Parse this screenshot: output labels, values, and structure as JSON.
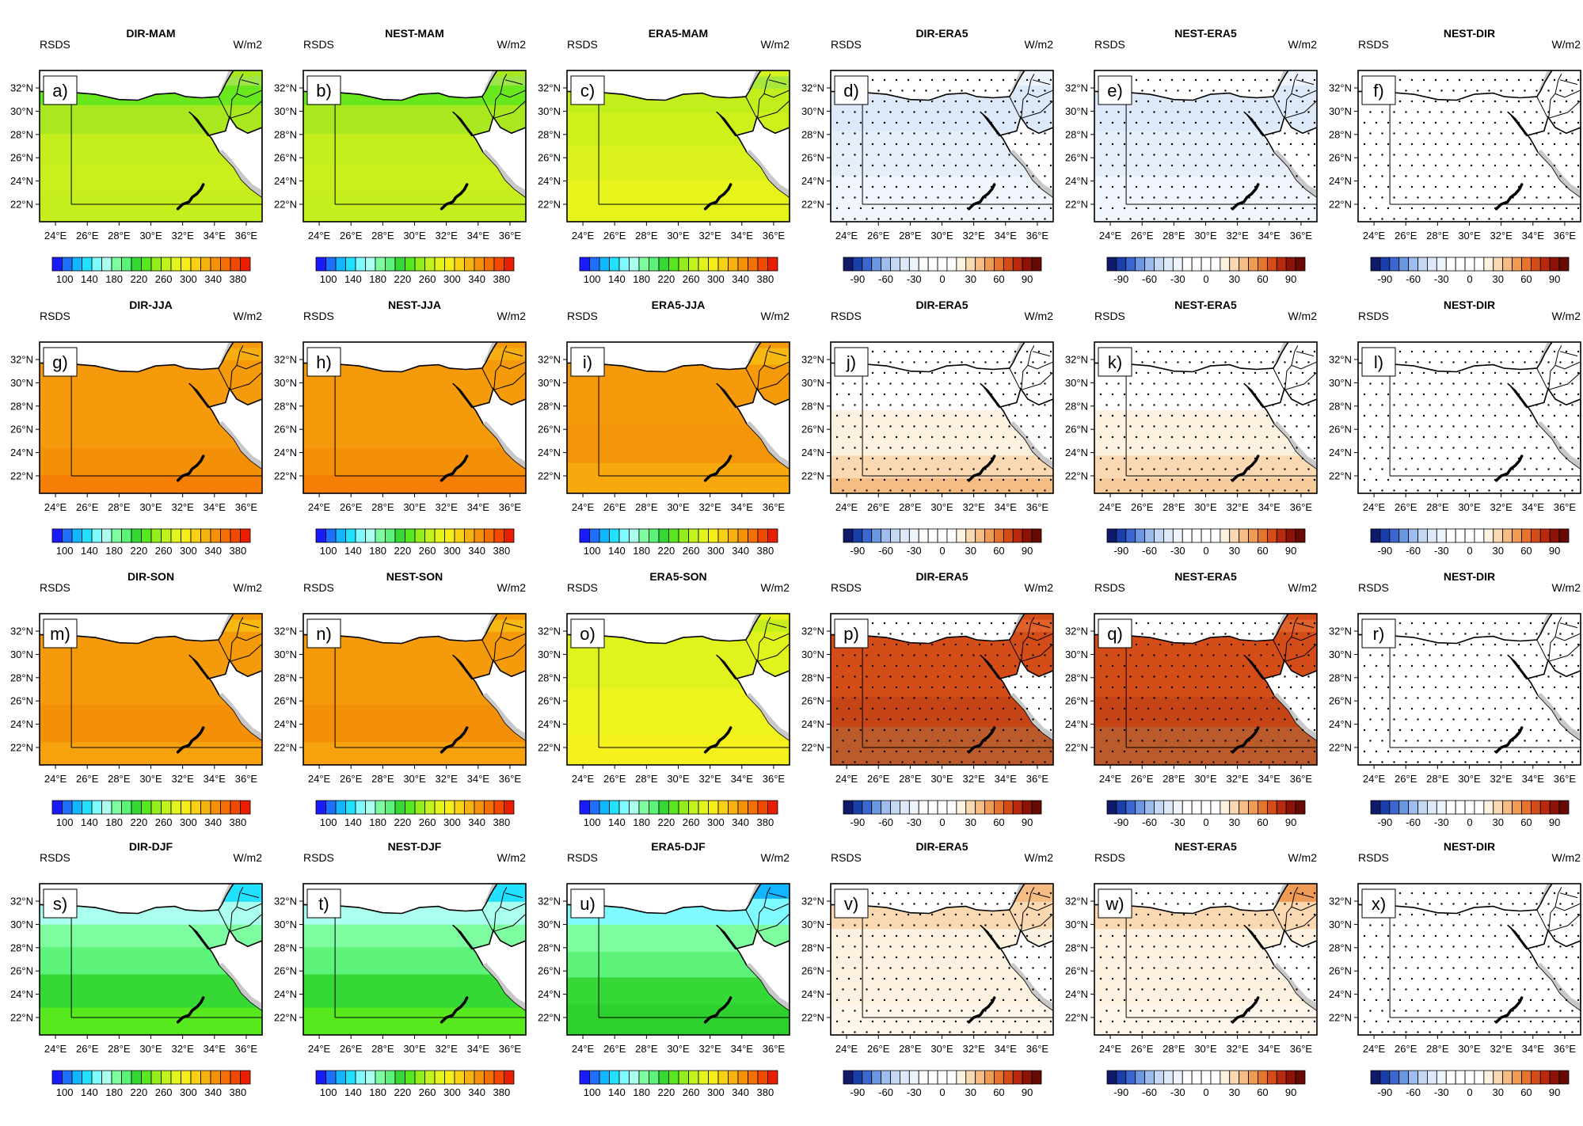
{
  "figure": {
    "variable_label": "RSDS",
    "unit_label": "W/m2",
    "lon_ticks": [
      "24°E",
      "26°E",
      "28°E",
      "30°E",
      "32°E",
      "34°E",
      "36°E"
    ],
    "lat_ticks": [
      "32°N",
      "30°N",
      "28°N",
      "26°N",
      "24°N",
      "22°N"
    ],
    "colors": {
      "abs_scale": [
        "#1a1aff",
        "#1f6fff",
        "#12b5ff",
        "#22e0ff",
        "#7ffbff",
        "#aaffee",
        "#7dfca0",
        "#5df27a",
        "#35d835",
        "#58e81e",
        "#93ee1c",
        "#c2f31c",
        "#e2f41c",
        "#f6ec1a",
        "#f8d014",
        "#f7b20e",
        "#f59108",
        "#f47004",
        "#f14902",
        "#e81e02"
      ],
      "diff_scale": [
        "#11196b",
        "#1b3fa8",
        "#3a68d0",
        "#6c97e3",
        "#9dbcef",
        "#c4d8f4",
        "#dde9f8",
        "#eef4fb",
        "#ffffff",
        "#ffffff",
        "#ffffff",
        "#ffffff",
        "#fdf1e0",
        "#fad9b2",
        "#f5bd84",
        "#ef9a55",
        "#e4742e",
        "#d44c18",
        "#b8290e",
        "#8d1208",
        "#680a04"
      ]
    },
    "panels": [
      {
        "title": "DIR-MAM",
        "letter": "a)",
        "scale": "abs",
        "base": "#a9e81e",
        "bands": [
          {
            "y": 0.04,
            "c": "#9de54a"
          },
          {
            "y": 0.1,
            "c": "#6ae81e"
          },
          {
            "y": 0.23,
            "c": "#a9e81e"
          },
          {
            "y": 0.42,
            "c": "#c4ee1c"
          },
          {
            "y": 0.62,
            "c": "#c9ef1c"
          },
          {
            "y": 0.8,
            "c": "#c4ee1c"
          }
        ],
        "stipple": false
      },
      {
        "title": "NEST-MAM",
        "letter": "b)",
        "scale": "abs",
        "base": "#a9e81e",
        "bands": [
          {
            "y": 0.04,
            "c": "#9de54a"
          },
          {
            "y": 0.1,
            "c": "#6ae81e"
          },
          {
            "y": 0.23,
            "c": "#a9e81e"
          },
          {
            "y": 0.42,
            "c": "#c4ee1c"
          },
          {
            "y": 0.62,
            "c": "#c9ef1c"
          },
          {
            "y": 0.8,
            "c": "#c4ee1c"
          }
        ],
        "stipple": false
      },
      {
        "title": "ERA5-MAM",
        "letter": "c)",
        "scale": "abs",
        "base": "#d7f21c",
        "bands": [
          {
            "y": 0.04,
            "c": "#a8e83a"
          },
          {
            "y": 0.12,
            "c": "#c2ee1c"
          },
          {
            "y": 0.28,
            "c": "#d0f01c"
          },
          {
            "y": 0.5,
            "c": "#dcf21c"
          },
          {
            "y": 0.72,
            "c": "#e6f41c"
          }
        ],
        "stipple": false
      },
      {
        "title": "DIR-ERA5",
        "letter": "d)",
        "scale": "diff",
        "base": "#eef4fb",
        "bands": [
          {
            "y": 0.1,
            "c": "#dde9f8"
          },
          {
            "y": 0.4,
            "c": "#e6eff9"
          },
          {
            "y": 0.7,
            "c": "#f1f6fc"
          }
        ],
        "stipple": true
      },
      {
        "title": "NEST-ERA5",
        "letter": "e)",
        "scale": "diff",
        "base": "#eef4fb",
        "bands": [
          {
            "y": 0.1,
            "c": "#dde9f8"
          },
          {
            "y": 0.4,
            "c": "#e6eff9"
          },
          {
            "y": 0.7,
            "c": "#f1f6fc"
          }
        ],
        "stipple": true
      },
      {
        "title": "NEST-DIR",
        "letter": "f)",
        "scale": "diff",
        "base": "#ffffff",
        "bands": [],
        "stipple": true
      },
      {
        "title": "DIR-JJA",
        "letter": "g)",
        "scale": "abs",
        "base": "#f59a0a",
        "bands": [
          {
            "y": 0.04,
            "c": "#f7ae10"
          },
          {
            "y": 0.12,
            "c": "#f59a0a"
          },
          {
            "y": 0.7,
            "c": "#f48f08"
          },
          {
            "y": 0.88,
            "c": "#f47e06"
          }
        ],
        "stipple": false
      },
      {
        "title": "NEST-JJA",
        "letter": "h)",
        "scale": "abs",
        "base": "#f59a0a",
        "bands": [
          {
            "y": 0.04,
            "c": "#f7ae10"
          },
          {
            "y": 0.12,
            "c": "#f59a0a"
          },
          {
            "y": 0.7,
            "c": "#f48f08"
          },
          {
            "y": 0.88,
            "c": "#f47e06"
          }
        ],
        "stipple": false
      },
      {
        "title": "ERA5-JJA",
        "letter": "i)",
        "scale": "abs",
        "base": "#f59a0a",
        "bands": [
          {
            "y": 0.04,
            "c": "#f7b812"
          },
          {
            "y": 0.15,
            "c": "#f59a0a"
          },
          {
            "y": 0.55,
            "c": "#f49408"
          },
          {
            "y": 0.8,
            "c": "#f6a80c"
          }
        ],
        "stipple": false
      },
      {
        "title": "DIR-ERA5",
        "letter": "j)",
        "scale": "diff",
        "base": "#ffffff",
        "bands": [
          {
            "y": 0.45,
            "c": "#fdf1e0"
          },
          {
            "y": 0.75,
            "c": "#fad9b2"
          },
          {
            "y": 0.9,
            "c": "#f5bd84"
          }
        ],
        "stipple": true
      },
      {
        "title": "NEST-ERA5",
        "letter": "k)",
        "scale": "diff",
        "base": "#ffffff",
        "bands": [
          {
            "y": 0.45,
            "c": "#fdf1e0"
          },
          {
            "y": 0.75,
            "c": "#fad9b2"
          },
          {
            "y": 0.9,
            "c": "#f7cc9c"
          }
        ],
        "stipple": true
      },
      {
        "title": "NEST-DIR",
        "letter": "l)",
        "scale": "diff",
        "base": "#ffffff",
        "bands": [],
        "stipple": true
      },
      {
        "title": "DIR-SON",
        "letter": "m)",
        "scale": "abs",
        "base": "#f59a0a",
        "bands": [
          {
            "y": 0.04,
            "c": "#f7b812"
          },
          {
            "y": 0.12,
            "c": "#f59a0a"
          },
          {
            "y": 0.6,
            "c": "#f48f08"
          },
          {
            "y": 0.85,
            "c": "#f6a20c"
          }
        ],
        "stipple": false
      },
      {
        "title": "NEST-SON",
        "letter": "n)",
        "scale": "abs",
        "base": "#f59a0a",
        "bands": [
          {
            "y": 0.04,
            "c": "#f7b812"
          },
          {
            "y": 0.12,
            "c": "#f59a0a"
          },
          {
            "y": 0.6,
            "c": "#f48f08"
          },
          {
            "y": 0.85,
            "c": "#f6a20c"
          }
        ],
        "stipple": false
      },
      {
        "title": "ERA5-SON",
        "letter": "o)",
        "scale": "abs",
        "base": "#e6f41c",
        "bands": [
          {
            "y": 0.04,
            "c": "#c8ef1c"
          },
          {
            "y": 0.12,
            "c": "#e0f31c"
          },
          {
            "y": 0.5,
            "c": "#eef41c"
          },
          {
            "y": 0.8,
            "c": "#f3f01c"
          }
        ],
        "stipple": false
      },
      {
        "title": "DIR-ERA5",
        "letter": "p)",
        "scale": "diff",
        "base": "#d44c18",
        "bands": [
          {
            "y": 0.04,
            "c": "#e0622a"
          },
          {
            "y": 0.12,
            "c": "#d44c18"
          },
          {
            "y": 0.55,
            "c": "#c64516"
          },
          {
            "y": 0.75,
            "c": "#bb5a2a"
          }
        ],
        "stipple": true
      },
      {
        "title": "NEST-ERA5",
        "letter": "q)",
        "scale": "diff",
        "base": "#d44c18",
        "bands": [
          {
            "y": 0.04,
            "c": "#e0622a"
          },
          {
            "y": 0.12,
            "c": "#d44c18"
          },
          {
            "y": 0.55,
            "c": "#c64516"
          },
          {
            "y": 0.75,
            "c": "#bb5a2a"
          }
        ],
        "stipple": true
      },
      {
        "title": "NEST-DIR",
        "letter": "r)",
        "scale": "diff",
        "base": "#ffffff",
        "bands": [],
        "stipple": true
      },
      {
        "title": "DIR-DJF",
        "letter": "s)",
        "scale": "abs",
        "base": "#5df27a",
        "bands": [
          {
            "y": 0.0,
            "c": "#22e0ff"
          },
          {
            "y": 0.12,
            "c": "#aaffee"
          },
          {
            "y": 0.27,
            "c": "#7dfca0"
          },
          {
            "y": 0.42,
            "c": "#5df27a"
          },
          {
            "y": 0.6,
            "c": "#35d835"
          },
          {
            "y": 0.82,
            "c": "#58e81e"
          }
        ],
        "stipple": false
      },
      {
        "title": "NEST-DJF",
        "letter": "t)",
        "scale": "abs",
        "base": "#5df27a",
        "bands": [
          {
            "y": 0.0,
            "c": "#22e0ff"
          },
          {
            "y": 0.12,
            "c": "#aaffee"
          },
          {
            "y": 0.27,
            "c": "#7dfca0"
          },
          {
            "y": 0.42,
            "c": "#5df27a"
          },
          {
            "y": 0.6,
            "c": "#35d835"
          },
          {
            "y": 0.82,
            "c": "#58e81e"
          }
        ],
        "stipple": false
      },
      {
        "title": "ERA5-DJF",
        "letter": "u)",
        "scale": "abs",
        "base": "#35d835",
        "bands": [
          {
            "y": 0.0,
            "c": "#12b5ff"
          },
          {
            "y": 0.1,
            "c": "#7ffbff"
          },
          {
            "y": 0.27,
            "c": "#7dfca0"
          },
          {
            "y": 0.45,
            "c": "#5df27a"
          },
          {
            "y": 0.62,
            "c": "#35d835"
          },
          {
            "y": 0.8,
            "c": "#2dd02d"
          }
        ],
        "stipple": false
      },
      {
        "title": "DIR-ERA5",
        "letter": "v)",
        "scale": "diff",
        "base": "#fdf1e0",
        "bands": [
          {
            "y": 0.0,
            "c": "#f5bd84"
          },
          {
            "y": 0.12,
            "c": "#fad9b2"
          },
          {
            "y": 0.3,
            "c": "#fdf1e0"
          },
          {
            "y": 0.8,
            "c": "#fef6eb"
          }
        ],
        "stipple": true
      },
      {
        "title": "NEST-ERA5",
        "letter": "w)",
        "scale": "diff",
        "base": "#fdf1e0",
        "bands": [
          {
            "y": 0.0,
            "c": "#ef9a55"
          },
          {
            "y": 0.12,
            "c": "#fad9b2"
          },
          {
            "y": 0.3,
            "c": "#fdf1e0"
          },
          {
            "y": 0.8,
            "c": "#fef6eb"
          }
        ],
        "stipple": true
      },
      {
        "title": "NEST-DIR",
        "letter": "x)",
        "scale": "diff",
        "base": "#ffffff",
        "bands": [],
        "stipple": true
      }
    ]
  },
  "chart_data": {
    "type": "heatmap",
    "title": "",
    "variable": "RSDS",
    "units": "W/m2",
    "lon_range": [
      23,
      37
    ],
    "lat_range": [
      20.5,
      33.5
    ],
    "xlabels": [
      "24°E",
      "26°E",
      "28°E",
      "30°E",
      "32°E",
      "34°E",
      "36°E"
    ],
    "ylabels": [
      "32°N",
      "30°N",
      "28°N",
      "26°N",
      "24°N",
      "22°N"
    ],
    "rows": [
      "MAM",
      "JJA",
      "SON",
      "DJF"
    ],
    "columns": [
      "DIR",
      "NEST",
      "ERA5",
      "DIR-ERA5",
      "NEST-ERA5",
      "NEST-DIR"
    ],
    "abs_colorbar_labels": [
      "100",
      "140",
      "180",
      "220",
      "260",
      "300",
      "340",
      "380"
    ],
    "diff_colorbar_labels": [
      "-90",
      "-60",
      "-30",
      "0",
      "30",
      "60",
      "90"
    ],
    "abs_colorbar_range": [
      80,
      400
    ],
    "diff_colorbar_range": [
      -105,
      105
    ]
  }
}
